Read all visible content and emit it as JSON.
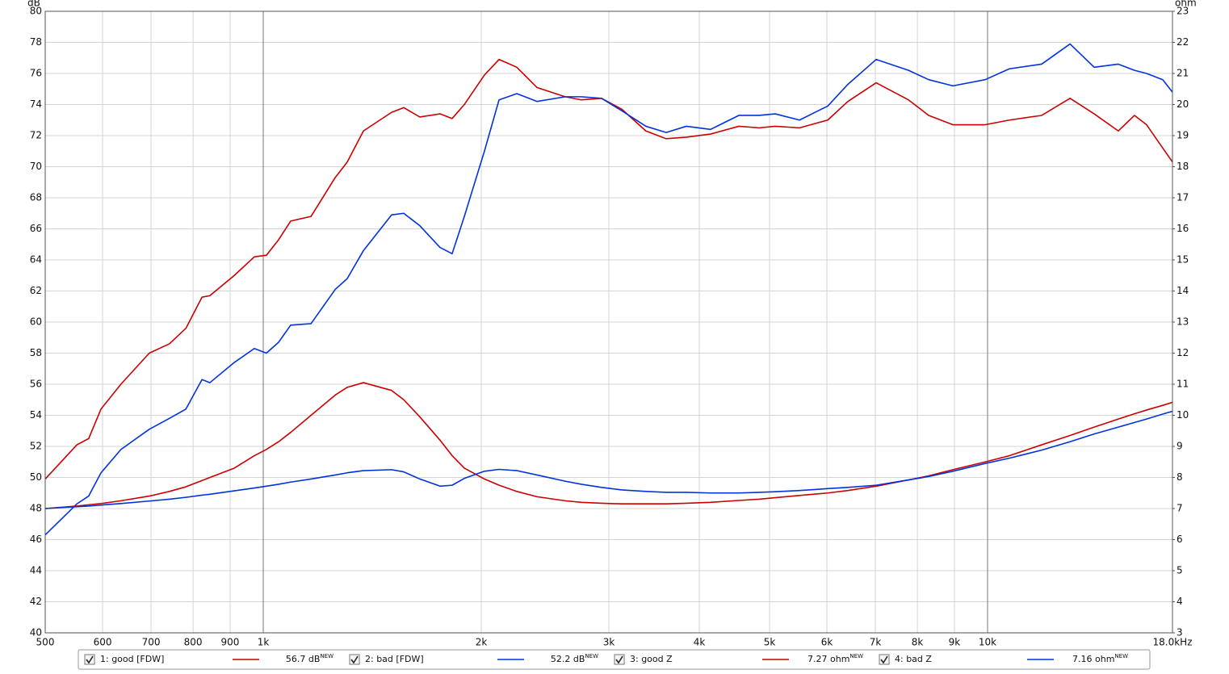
{
  "chart_data": {
    "type": "line",
    "xscale": "log",
    "grid": true,
    "ylabel": "dB",
    "y2label": "ohm",
    "x": [
      500,
      553,
      574,
      597,
      636,
      696,
      742,
      782,
      823,
      844,
      912,
      972,
      1010,
      1050,
      1091,
      1164,
      1257,
      1306,
      1375,
      1504,
      1563,
      1645,
      1754,
      1823,
      1895,
      2020,
      2116,
      2239,
      2387,
      2611,
      2749,
      2931,
      3126,
      3375,
      3600,
      3838,
      4145,
      4535,
      4836,
      5090,
      5500,
      6016,
      6414,
      7017,
      7777,
      8293,
      8956,
      9923,
      10717,
      11877,
      12997,
      14034,
      15154,
      15952,
      16578,
      17452,
      18000
    ],
    "xlim": [
      500,
      18000
    ],
    "xticks": [
      500,
      600,
      700,
      800,
      900,
      {
        "value": 1000,
        "label": "1k"
      },
      {
        "value": 2000,
        "label": "2k"
      },
      {
        "value": 3000,
        "label": "3k"
      },
      {
        "value": 4000,
        "label": "4k"
      },
      {
        "value": 5000,
        "label": "5k"
      },
      {
        "value": 6000,
        "label": "6k"
      },
      {
        "value": 7000,
        "label": "7k"
      },
      {
        "value": 8000,
        "label": "8k"
      },
      {
        "value": 9000,
        "label": "9k"
      },
      {
        "value": 10000,
        "label": "10k"
      },
      {
        "value": 18000,
        "label": "18.0kHz"
      }
    ],
    "ylim": [
      40,
      80
    ],
    "yticks": [
      40,
      42,
      44,
      46,
      48,
      50,
      52,
      54,
      56,
      58,
      60,
      62,
      64,
      66,
      68,
      70,
      72,
      74,
      76,
      78,
      80
    ],
    "y2lim": [
      3,
      23
    ],
    "y2ticks": [
      3,
      4,
      5,
      6,
      7,
      8,
      9,
      10,
      11,
      12,
      13,
      14,
      15,
      16,
      17,
      18,
      19,
      20,
      21,
      22,
      23
    ],
    "series": [
      {
        "name": "1: good [FDW]",
        "color": "#cc0000",
        "checked": true,
        "readout": "56.7 dB",
        "readout_tag": "NEW",
        "values": [
          49.9,
          52.1,
          52.5,
          54.4,
          56.0,
          58.0,
          58.6,
          59.6,
          61.6,
          61.7,
          63.0,
          64.2,
          64.3,
          65.3,
          66.5,
          66.8,
          69.3,
          70.3,
          72.3,
          73.5,
          73.8,
          73.2,
          73.4,
          73.1,
          74.0,
          75.9,
          76.9,
          76.4,
          75.1,
          74.5,
          74.3,
          74.4,
          73.7,
          72.3,
          71.8,
          71.9,
          72.1,
          72.6,
          72.5,
          72.6,
          72.5,
          73.0,
          74.2,
          75.4,
          74.3,
          73.3,
          72.7,
          72.7,
          73.0,
          73.3,
          74.4,
          73.4,
          72.3,
          73.3,
          72.7,
          71.2,
          70.3
        ]
      },
      {
        "name": "2: bad [FDW]",
        "color": "#0033dd",
        "checked": true,
        "readout": "52.2 dB",
        "readout_tag": "NEW",
        "values": [
          46.3,
          48.3,
          48.8,
          50.3,
          51.8,
          53.1,
          53.8,
          54.4,
          56.3,
          56.1,
          57.4,
          58.3,
          58.0,
          58.7,
          59.8,
          59.9,
          62.1,
          62.8,
          64.6,
          66.9,
          67.0,
          66.2,
          64.8,
          64.4,
          66.8,
          71.0,
          74.3,
          74.7,
          74.2,
          74.5,
          74.5,
          74.4,
          73.6,
          72.6,
          72.2,
          72.6,
          72.4,
          73.3,
          73.3,
          73.4,
          73.0,
          73.9,
          75.3,
          76.9,
          76.2,
          75.6,
          75.2,
          75.6,
          76.3,
          76.6,
          77.9,
          76.4,
          76.6,
          76.2,
          76.0,
          75.6,
          74.8
        ]
      },
      {
        "name": "3: good Z",
        "color": "#cc0000",
        "checked": true,
        "axis": "y2",
        "readout": "7.27 ohm",
        "readout_tag": "NEW",
        "values": [
          7.0,
          7.08,
          7.12,
          7.16,
          7.25,
          7.4,
          7.55,
          7.7,
          7.9,
          8.0,
          8.3,
          8.7,
          8.9,
          9.15,
          9.45,
          10.0,
          10.65,
          10.9,
          11.05,
          10.8,
          10.5,
          9.95,
          9.2,
          8.7,
          8.3,
          7.95,
          7.75,
          7.55,
          7.38,
          7.25,
          7.2,
          7.17,
          7.15,
          7.15,
          7.15,
          7.17,
          7.2,
          7.26,
          7.3,
          7.35,
          7.42,
          7.5,
          7.58,
          7.72,
          7.92,
          8.05,
          8.25,
          8.5,
          8.7,
          9.05,
          9.35,
          9.62,
          9.88,
          10.05,
          10.17,
          10.32,
          10.42
        ]
      },
      {
        "name": "4: bad Z",
        "color": "#0033dd",
        "checked": true,
        "axis": "y2",
        "readout": "7.16 ohm",
        "readout_tag": "NEW",
        "values": [
          7.0,
          7.06,
          7.08,
          7.11,
          7.16,
          7.24,
          7.3,
          7.36,
          7.43,
          7.46,
          7.57,
          7.66,
          7.72,
          7.78,
          7.85,
          7.95,
          8.08,
          8.15,
          8.22,
          8.25,
          8.18,
          7.95,
          7.72,
          7.75,
          7.97,
          8.2,
          8.26,
          8.22,
          8.08,
          7.88,
          7.78,
          7.68,
          7.6,
          7.55,
          7.52,
          7.52,
          7.5,
          7.5,
          7.52,
          7.54,
          7.58,
          7.64,
          7.68,
          7.75,
          7.92,
          8.03,
          8.2,
          8.45,
          8.62,
          8.88,
          9.15,
          9.4,
          9.62,
          9.77,
          9.88,
          10.04,
          10.13
        ]
      }
    ]
  }
}
